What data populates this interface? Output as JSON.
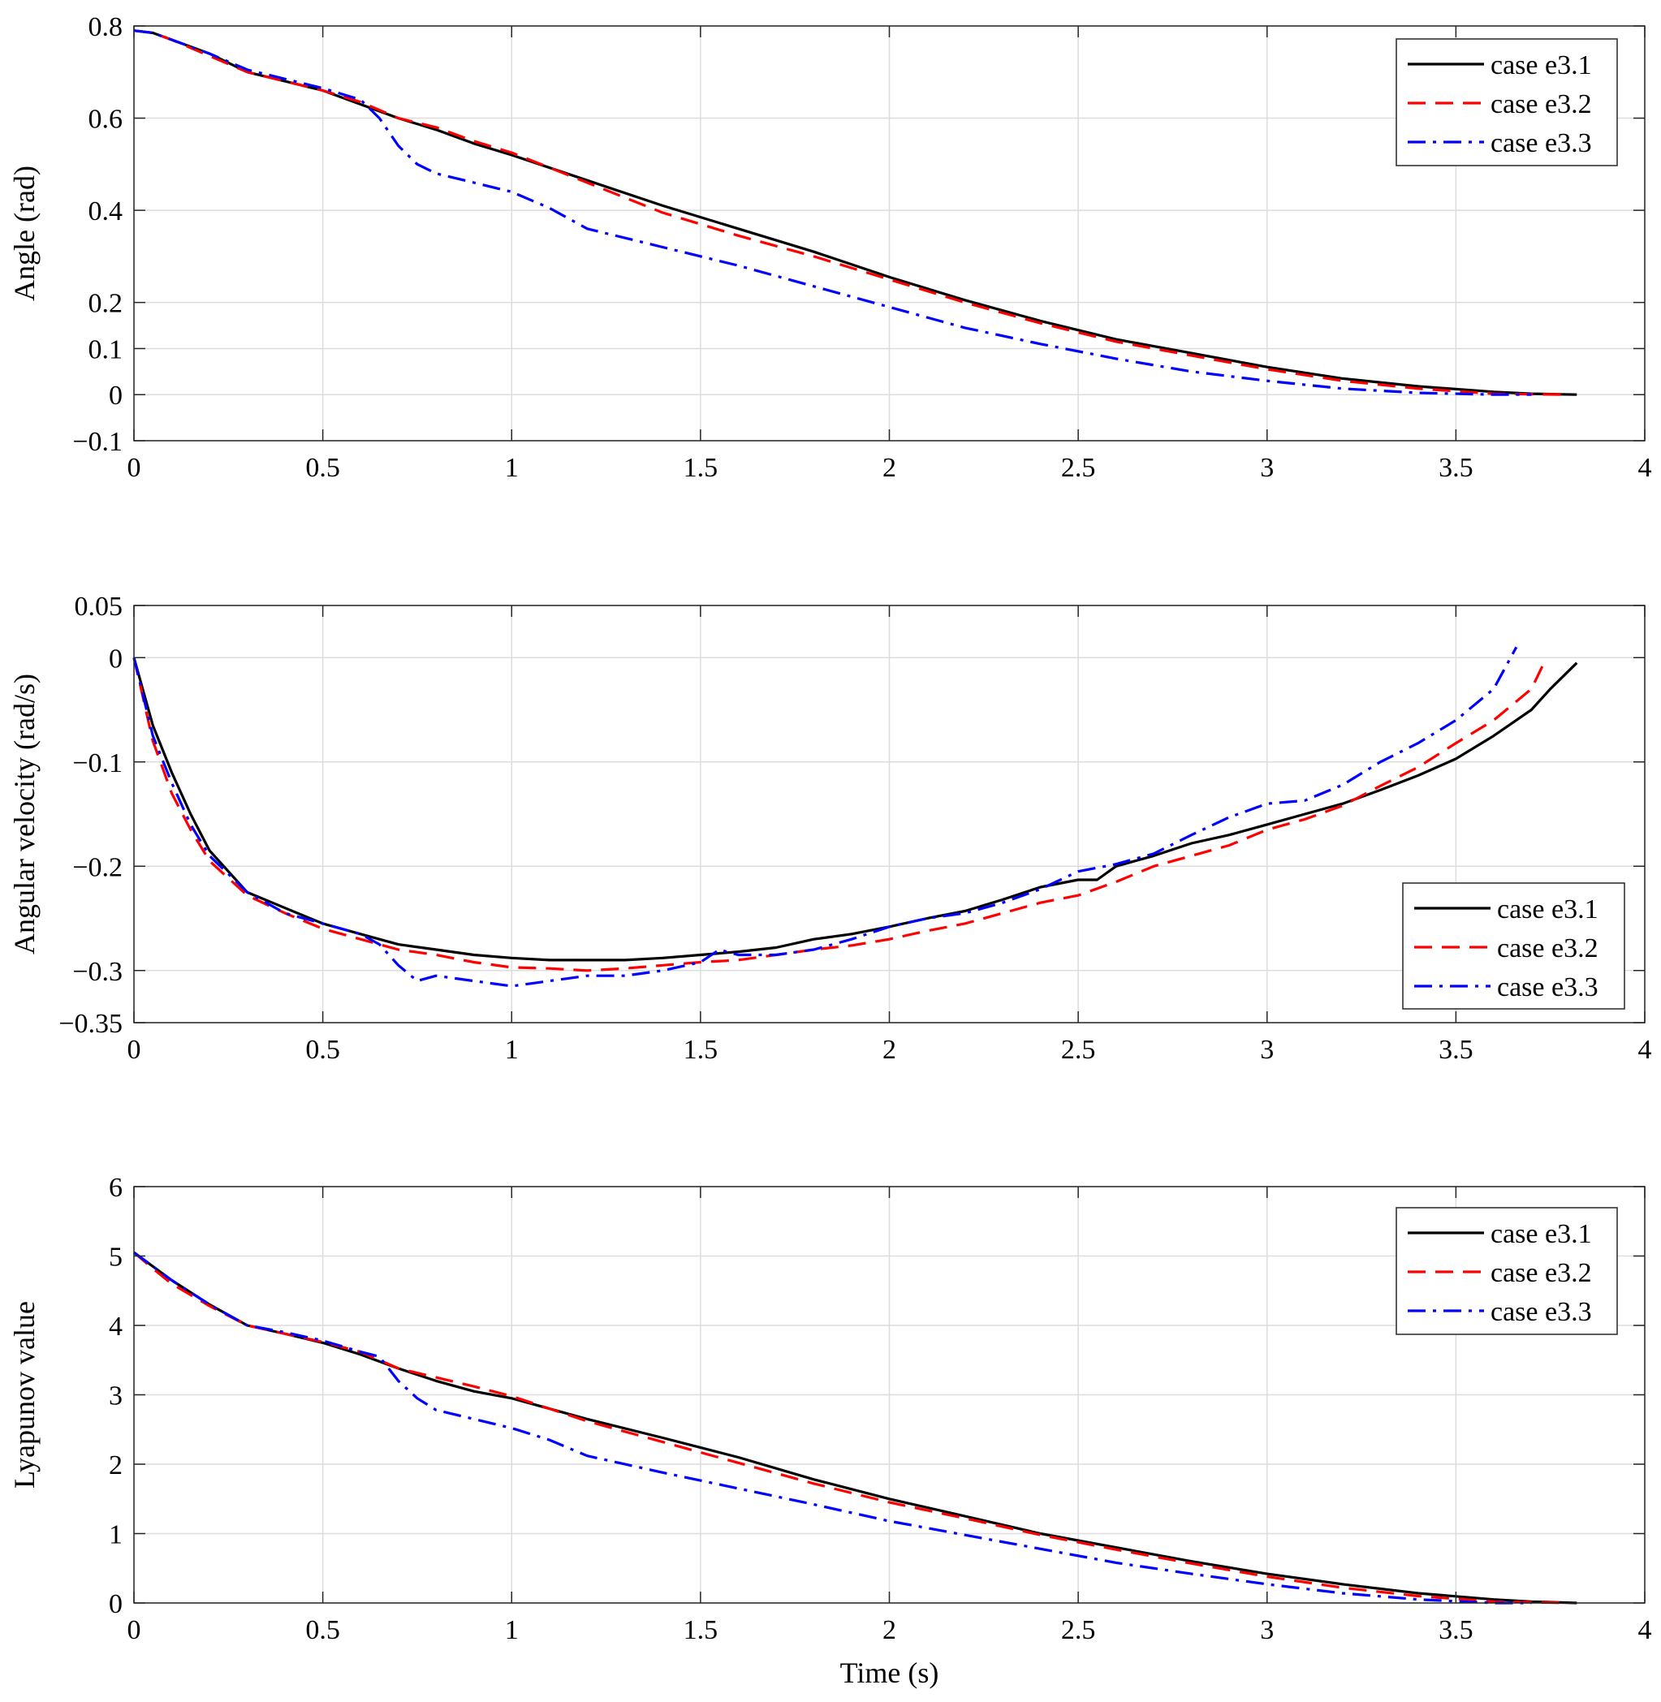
{
  "chart_data": [
    {
      "type": "line",
      "ylabel": "Angle (rad)",
      "xlabel": "",
      "xlim": [
        0,
        4
      ],
      "ylim": [
        -0.1,
        0.8
      ],
      "xticks": [
        0,
        0.5,
        1,
        1.5,
        2,
        2.5,
        3,
        3.5,
        4
      ],
      "xtick_labels": [
        "0",
        "0.5",
        "1",
        "1.5",
        "2",
        "2.5",
        "3",
        "3.5",
        "4"
      ],
      "yticks": [
        -0.1,
        0,
        0.1,
        0.2,
        0.4,
        0.6,
        0.8
      ],
      "ytick_labels": [
        "−0.1",
        "0",
        "0.1",
        "0.2",
        "0.4",
        "0.6",
        "0.8"
      ],
      "grid": true,
      "legend_position": "top-right",
      "series": [
        {
          "name": "case e3.1",
          "color": "#000000",
          "style": "solid",
          "x": [
            0,
            0.05,
            0.1,
            0.2,
            0.3,
            0.4,
            0.5,
            0.6,
            0.7,
            0.8,
            0.9,
            1.0,
            1.2,
            1.4,
            1.6,
            1.8,
            2.0,
            2.2,
            2.4,
            2.6,
            2.8,
            3.0,
            3.2,
            3.4,
            3.6,
            3.7,
            3.82
          ],
          "y": [
            0.79,
            0.785,
            0.77,
            0.74,
            0.7,
            0.68,
            0.66,
            0.63,
            0.6,
            0.575,
            0.545,
            0.52,
            0.465,
            0.41,
            0.36,
            0.31,
            0.255,
            0.205,
            0.16,
            0.12,
            0.09,
            0.06,
            0.035,
            0.018,
            0.006,
            0.002,
            0
          ]
        },
        {
          "name": "case e3.2",
          "color": "#ff0000",
          "style": "dashed",
          "x": [
            0,
            0.05,
            0.1,
            0.2,
            0.3,
            0.4,
            0.5,
            0.6,
            0.7,
            0.8,
            0.9,
            1.0,
            1.2,
            1.4,
            1.6,
            1.8,
            2.0,
            2.2,
            2.4,
            2.6,
            2.8,
            3.0,
            3.2,
            3.4,
            3.6,
            3.7,
            3.8
          ],
          "y": [
            0.79,
            0.785,
            0.77,
            0.735,
            0.7,
            0.68,
            0.66,
            0.635,
            0.6,
            0.58,
            0.55,
            0.525,
            0.46,
            0.395,
            0.345,
            0.3,
            0.25,
            0.2,
            0.155,
            0.115,
            0.085,
            0.055,
            0.03,
            0.013,
            0.002,
            0.001,
            0
          ]
        },
        {
          "name": "case e3.3",
          "color": "#0000ff",
          "style": "dashdot",
          "x": [
            0,
            0.05,
            0.1,
            0.2,
            0.3,
            0.4,
            0.5,
            0.6,
            0.65,
            0.7,
            0.75,
            0.8,
            0.9,
            1.0,
            1.1,
            1.2,
            1.4,
            1.6,
            1.8,
            2.0,
            2.2,
            2.4,
            2.6,
            2.8,
            3.0,
            3.2,
            3.4,
            3.6,
            3.7
          ],
          "y": [
            0.79,
            0.785,
            0.77,
            0.74,
            0.705,
            0.685,
            0.665,
            0.64,
            0.6,
            0.54,
            0.5,
            0.48,
            0.46,
            0.44,
            0.405,
            0.36,
            0.32,
            0.28,
            0.235,
            0.19,
            0.145,
            0.11,
            0.078,
            0.05,
            0.03,
            0.013,
            0.004,
            0,
            0
          ]
        }
      ]
    },
    {
      "type": "line",
      "ylabel": "Angular velocity (rad/s)",
      "xlabel": "",
      "xlim": [
        0,
        4
      ],
      "ylim": [
        -0.35,
        0.05
      ],
      "xticks": [
        0,
        0.5,
        1,
        1.5,
        2,
        2.5,
        3,
        3.5,
        4
      ],
      "xtick_labels": [
        "0",
        "0.5",
        "1",
        "1.5",
        "2",
        "2.5",
        "3",
        "3.5",
        "4"
      ],
      "yticks": [
        -0.35,
        -0.3,
        -0.2,
        -0.1,
        0,
        0.05
      ],
      "ytick_labels": [
        "−0.35",
        "−0.3",
        "−0.2",
        "−0.1",
        "0",
        "0.05"
      ],
      "grid": true,
      "legend_position": "lower-right",
      "series": [
        {
          "name": "case e3.1",
          "color": "#000000",
          "style": "solid",
          "x": [
            0,
            0.05,
            0.1,
            0.15,
            0.2,
            0.3,
            0.4,
            0.5,
            0.6,
            0.7,
            0.8,
            0.9,
            1.0,
            1.1,
            1.2,
            1.3,
            1.4,
            1.5,
            1.6,
            1.7,
            1.8,
            1.9,
            2.0,
            2.1,
            2.2,
            2.3,
            2.4,
            2.5,
            2.55,
            2.6,
            2.7,
            2.8,
            2.9,
            3.0,
            3.1,
            3.2,
            3.3,
            3.4,
            3.5,
            3.6,
            3.7,
            3.75,
            3.82
          ],
          "y": [
            0,
            -0.065,
            -0.11,
            -0.15,
            -0.185,
            -0.225,
            -0.24,
            -0.255,
            -0.265,
            -0.275,
            -0.28,
            -0.285,
            -0.288,
            -0.29,
            -0.29,
            -0.29,
            -0.288,
            -0.285,
            -0.282,
            -0.278,
            -0.27,
            -0.265,
            -0.258,
            -0.25,
            -0.243,
            -0.232,
            -0.22,
            -0.213,
            -0.213,
            -0.2,
            -0.19,
            -0.178,
            -0.17,
            -0.16,
            -0.15,
            -0.14,
            -0.127,
            -0.113,
            -0.097,
            -0.075,
            -0.05,
            -0.03,
            -0.005
          ]
        },
        {
          "name": "case e3.2",
          "color": "#ff0000",
          "style": "dashed",
          "x": [
            0,
            0.05,
            0.1,
            0.15,
            0.2,
            0.3,
            0.4,
            0.5,
            0.6,
            0.7,
            0.8,
            0.9,
            1.0,
            1.1,
            1.2,
            1.3,
            1.4,
            1.5,
            1.6,
            1.7,
            1.8,
            1.9,
            2.0,
            2.1,
            2.2,
            2.3,
            2.4,
            2.5,
            2.6,
            2.7,
            2.8,
            2.9,
            3.0,
            3.1,
            3.2,
            3.3,
            3.4,
            3.5,
            3.6,
            3.7,
            3.74
          ],
          "y": [
            0,
            -0.08,
            -0.13,
            -0.165,
            -0.195,
            -0.228,
            -0.245,
            -0.26,
            -0.27,
            -0.28,
            -0.285,
            -0.292,
            -0.297,
            -0.298,
            -0.3,
            -0.298,
            -0.295,
            -0.292,
            -0.29,
            -0.285,
            -0.28,
            -0.276,
            -0.27,
            -0.262,
            -0.255,
            -0.245,
            -0.235,
            -0.228,
            -0.215,
            -0.2,
            -0.19,
            -0.18,
            -0.165,
            -0.155,
            -0.142,
            -0.123,
            -0.105,
            -0.082,
            -0.06,
            -0.03,
            0
          ]
        },
        {
          "name": "case e3.3",
          "color": "#0000ff",
          "style": "dashdot",
          "x": [
            0,
            0.05,
            0.1,
            0.15,
            0.2,
            0.3,
            0.4,
            0.5,
            0.6,
            0.65,
            0.7,
            0.75,
            0.8,
            0.9,
            1.0,
            1.1,
            1.2,
            1.3,
            1.4,
            1.5,
            1.55,
            1.6,
            1.7,
            1.8,
            1.9,
            2.0,
            2.1,
            2.2,
            2.3,
            2.4,
            2.5,
            2.6,
            2.7,
            2.8,
            2.9,
            3.0,
            3.1,
            3.2,
            3.3,
            3.4,
            3.5,
            3.6,
            3.66
          ],
          "y": [
            0,
            -0.075,
            -0.12,
            -0.16,
            -0.19,
            -0.225,
            -0.245,
            -0.255,
            -0.265,
            -0.275,
            -0.295,
            -0.31,
            -0.305,
            -0.31,
            -0.315,
            -0.31,
            -0.305,
            -0.305,
            -0.3,
            -0.292,
            -0.28,
            -0.285,
            -0.285,
            -0.28,
            -0.27,
            -0.258,
            -0.25,
            -0.245,
            -0.235,
            -0.222,
            -0.205,
            -0.198,
            -0.188,
            -0.17,
            -0.153,
            -0.14,
            -0.137,
            -0.122,
            -0.1,
            -0.082,
            -0.06,
            -0.03,
            0.01
          ]
        }
      ]
    },
    {
      "type": "line",
      "ylabel": "Lyapunov value",
      "xlabel": "Time (s)",
      "xlim": [
        0,
        4
      ],
      "ylim": [
        0,
        6
      ],
      "xticks": [
        0,
        0.5,
        1,
        1.5,
        2,
        2.5,
        3,
        3.5,
        4
      ],
      "xtick_labels": [
        "0",
        "0.5",
        "1",
        "1.5",
        "2",
        "2.5",
        "3",
        "3.5",
        "4"
      ],
      "yticks": [
        0,
        1,
        2,
        3,
        4,
        5,
        6
      ],
      "ytick_labels": [
        "0",
        "1",
        "2",
        "3",
        "4",
        "5",
        "6"
      ],
      "grid": true,
      "legend_position": "top-right",
      "series": [
        {
          "name": "case e3.1",
          "color": "#000000",
          "style": "solid",
          "x": [
            0,
            0.05,
            0.1,
            0.2,
            0.3,
            0.4,
            0.5,
            0.6,
            0.7,
            0.8,
            0.9,
            1.0,
            1.2,
            1.4,
            1.6,
            1.8,
            2.0,
            2.2,
            2.4,
            2.6,
            2.8,
            3.0,
            3.2,
            3.4,
            3.6,
            3.7,
            3.82
          ],
          "y": [
            5.05,
            4.85,
            4.65,
            4.3,
            4.0,
            3.88,
            3.75,
            3.58,
            3.38,
            3.2,
            3.05,
            2.95,
            2.65,
            2.38,
            2.1,
            1.78,
            1.5,
            1.25,
            1.0,
            0.8,
            0.6,
            0.42,
            0.27,
            0.14,
            0.05,
            0.02,
            0
          ]
        },
        {
          "name": "case e3.2",
          "color": "#ff0000",
          "style": "dashed",
          "x": [
            0,
            0.05,
            0.1,
            0.2,
            0.3,
            0.4,
            0.5,
            0.6,
            0.7,
            0.8,
            0.9,
            1.0,
            1.2,
            1.4,
            1.6,
            1.8,
            2.0,
            2.2,
            2.4,
            2.6,
            2.8,
            3.0,
            3.2,
            3.4,
            3.6,
            3.7,
            3.8
          ],
          "y": [
            5.05,
            4.82,
            4.6,
            4.28,
            4.0,
            3.88,
            3.76,
            3.62,
            3.38,
            3.25,
            3.12,
            2.98,
            2.62,
            2.32,
            2.02,
            1.72,
            1.45,
            1.22,
            0.98,
            0.77,
            0.57,
            0.38,
            0.22,
            0.1,
            0.02,
            0.01,
            0
          ]
        },
        {
          "name": "case e3.3",
          "color": "#0000ff",
          "style": "dashdot",
          "x": [
            0,
            0.05,
            0.1,
            0.2,
            0.3,
            0.4,
            0.5,
            0.6,
            0.65,
            0.7,
            0.75,
            0.8,
            0.9,
            1.0,
            1.1,
            1.2,
            1.4,
            1.6,
            1.8,
            2.0,
            2.2,
            2.4,
            2.6,
            2.8,
            3.0,
            3.2,
            3.4,
            3.6,
            3.7
          ],
          "y": [
            5.05,
            4.85,
            4.65,
            4.3,
            4.0,
            3.9,
            3.78,
            3.62,
            3.55,
            3.2,
            2.95,
            2.78,
            2.65,
            2.52,
            2.35,
            2.12,
            1.88,
            1.65,
            1.42,
            1.18,
            0.98,
            0.78,
            0.58,
            0.42,
            0.27,
            0.14,
            0.05,
            0,
            0
          ]
        }
      ]
    }
  ]
}
